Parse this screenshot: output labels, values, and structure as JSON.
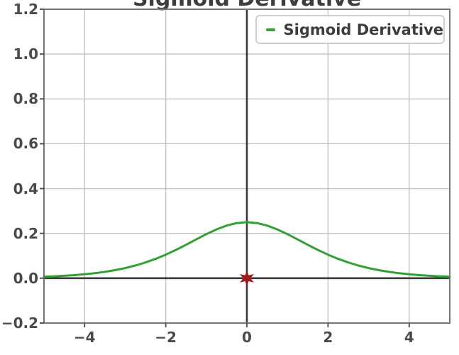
{
  "title": "Sigmoid Derivative",
  "legend": {
    "label": "Sigmoid Derivative",
    "position": "upper right"
  },
  "colors": {
    "curve": "#32a032",
    "marker": "#9e1c1c",
    "zero_axis": "#383838",
    "grid": "#c2c2c2",
    "spine": "#757575",
    "tick": "#555555",
    "tick_label": "#4a4a4a",
    "legend_border": "#cfcfcf"
  },
  "axes": {
    "x_tick_values": [
      -4,
      -2,
      0,
      2,
      4
    ],
    "x_tick_labels": [
      "−4",
      "−2",
      "0",
      "2",
      "4"
    ],
    "y_tick_values": [
      -0.2,
      0.0,
      0.2,
      0.4,
      0.6,
      0.8,
      1.0,
      1.2
    ],
    "y_tick_labels": [
      "−0.2",
      "0.0",
      "0.2",
      "0.4",
      "0.6",
      "0.8",
      "1.0",
      "1.2"
    ]
  },
  "chart_data": {
    "type": "line",
    "title": "Sigmoid Derivative",
    "xlabel": "",
    "ylabel": "",
    "xlim": [
      -5,
      5
    ],
    "ylim": [
      -0.2,
      1.2
    ],
    "grid": true,
    "legend_position": "upper right",
    "series": [
      {
        "name": "Sigmoid Derivative",
        "color": "#32a032",
        "x": [
          -5.0,
          -4.75,
          -4.5,
          -4.25,
          -4.0,
          -3.75,
          -3.5,
          -3.25,
          -3.0,
          -2.75,
          -2.5,
          -2.25,
          -2.0,
          -1.75,
          -1.5,
          -1.25,
          -1.0,
          -0.75,
          -0.5,
          -0.25,
          0.0,
          0.25,
          0.5,
          0.75,
          1.0,
          1.25,
          1.5,
          1.75,
          2.0,
          2.25,
          2.5,
          2.75,
          3.0,
          3.25,
          3.5,
          3.75,
          4.0,
          4.25,
          4.5,
          4.75,
          5.0
        ],
        "y": [
          0.0066,
          0.0085,
          0.0109,
          0.0139,
          0.0177,
          0.0225,
          0.0285,
          0.0359,
          0.0452,
          0.0565,
          0.0701,
          0.0863,
          0.105,
          0.1261,
          0.1491,
          0.1731,
          0.1966,
          0.2179,
          0.235,
          0.2461,
          0.25,
          0.2461,
          0.235,
          0.2179,
          0.1966,
          0.1731,
          0.1491,
          0.1261,
          0.105,
          0.0863,
          0.0701,
          0.0565,
          0.0452,
          0.0359,
          0.0285,
          0.0225,
          0.0177,
          0.0139,
          0.0109,
          0.0085,
          0.0066
        ]
      }
    ],
    "markers": [
      {
        "x": 0,
        "y": 0,
        "shape": "star",
        "color": "#9e1c1c"
      }
    ],
    "zero_lines": {
      "horizontal_y": 0.0,
      "vertical_x": 0.0
    }
  }
}
